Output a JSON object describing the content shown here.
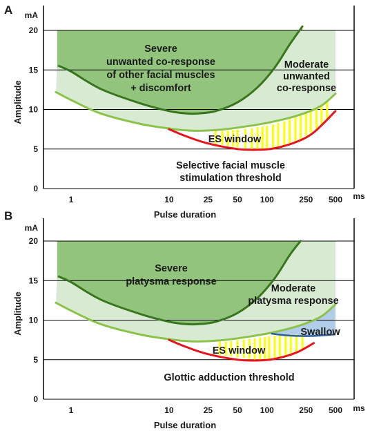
{
  "colors": {
    "severe_fill": "#93c47d",
    "severe_line": "#38761d",
    "moderate_fill": "#d9ead3",
    "moderate_line": "#8bc34a",
    "threshold_line": "#e8141b",
    "es_window_bars": "#ffff00",
    "swallow_fill": "#a9c8e8",
    "swallow_line": "#2e5e96",
    "discomfort_text": "#e8141b",
    "grid": "#000000"
  },
  "chart_data": [
    {
      "panel": "A",
      "type": "area",
      "x_scale": "log",
      "x_unit": "ms",
      "y_unit": "mA",
      "xlabel": "Pulse duration",
      "ylabel": "Amplitude",
      "x_ticks": [
        "1",
        "10",
        "25",
        "50",
        "100",
        "250",
        "500"
      ],
      "y_ticks": [
        "0",
        "5",
        "10",
        "15",
        "20"
      ],
      "ylim": [
        0,
        20
      ],
      "grid": "horizontal",
      "regions": [
        {
          "label_lines": [
            "Severe",
            "unwanted co-response",
            "of other facial muscles"
          ],
          "extra_line": "+ discomfort"
        },
        {
          "label_lines": [
            "Moderate",
            "unwanted",
            "co-response"
          ]
        },
        {
          "label_lines": [
            "ES window"
          ]
        },
        {
          "label_lines": [
            "Selective facial muscle",
            "stimulation threshold"
          ]
        }
      ],
      "series": [
        {
          "x": [
            0.7,
            1,
            2,
            5,
            10,
            15,
            20,
            30,
            50,
            100,
            200,
            350,
            500
          ],
          "y": [
            12.2,
            11.2,
            9.5,
            8.2,
            7.6,
            7.35,
            7.3,
            7.4,
            7.7,
            8.3,
            9.2,
            10.4,
            12.0
          ]
        },
        {
          "x": [
            0.75,
            1,
            2,
            5,
            10,
            15,
            20,
            30,
            50,
            80,
            120,
            170,
            230
          ],
          "y": [
            15.5,
            14.8,
            12.6,
            10.8,
            9.8,
            9.5,
            9.5,
            9.8,
            10.9,
            12.8,
            15.3,
            18.2,
            20.5
          ]
        },
        {
          "x": [
            10,
            15,
            25,
            50,
            80,
            120,
            200,
            300,
            500
          ],
          "y": [
            7.5,
            6.6,
            5.7,
            5.0,
            4.9,
            5.1,
            5.9,
            7.1,
            9.8
          ]
        }
      ],
      "es_window": {
        "x": [
          30,
          35,
          40,
          45,
          50,
          60,
          70,
          80,
          90,
          100,
          115,
          130,
          150,
          170,
          195,
          220,
          250,
          280,
          320,
          360,
          410
        ],
        "y_low": [
          5.6,
          5.5,
          5.4,
          5.3,
          5.2,
          5.1,
          5.0,
          5.0,
          5.0,
          5.0,
          5.1,
          5.2,
          5.4,
          5.7,
          6.0,
          6.3,
          6.7,
          7.1,
          7.6,
          8.1,
          8.7
        ],
        "y_high": [
          7.3,
          7.3,
          7.35,
          7.4,
          7.45,
          7.55,
          7.65,
          7.75,
          7.85,
          7.95,
          8.1,
          8.3,
          8.5,
          8.75,
          9.0,
          9.3,
          9.6,
          9.9,
          10.3,
          10.7,
          11.1
        ]
      }
    },
    {
      "panel": "B",
      "type": "area",
      "x_scale": "log",
      "x_unit": "ms",
      "y_unit": "mA",
      "xlabel": "Pulse duration",
      "ylabel": "Amplitude",
      "x_ticks": [
        "1",
        "10",
        "25",
        "50",
        "100",
        "250",
        "500"
      ],
      "y_ticks": [
        "0",
        "5",
        "10",
        "15",
        "20"
      ],
      "ylim": [
        0,
        20
      ],
      "grid": "horizontal",
      "regions": [
        {
          "label_lines": [
            "Severe",
            "platysma response"
          ]
        },
        {
          "label_lines": [
            "Moderate",
            "platysma response"
          ]
        },
        {
          "label_lines": [
            "Swallow"
          ]
        },
        {
          "label_lines": [
            "ES window"
          ]
        },
        {
          "label_lines": [
            "Glottic adduction threshold"
          ]
        }
      ],
      "series": [
        {
          "x": [
            0.7,
            1,
            2,
            5,
            10,
            15,
            20,
            30,
            50,
            100,
            200,
            350,
            500
          ],
          "y": [
            12.2,
            11.2,
            9.5,
            8.2,
            7.6,
            7.35,
            7.3,
            7.4,
            7.7,
            8.3,
            9.2,
            10.4,
            12.0
          ]
        },
        {
          "x": [
            0.75,
            1,
            2,
            5,
            10,
            15,
            20,
            30,
            50,
            80,
            120,
            170,
            220
          ],
          "y": [
            15.5,
            14.8,
            12.6,
            10.8,
            9.8,
            9.5,
            9.5,
            9.8,
            10.9,
            12.8,
            15.3,
            18.2,
            20.0
          ]
        },
        {
          "x": [
            10,
            15,
            25,
            50,
            80,
            120,
            200,
            300
          ],
          "y": [
            7.5,
            6.6,
            5.7,
            5.0,
            4.9,
            5.1,
            5.9,
            7.1
          ]
        },
        {
          "x": [
            110,
            150,
            200,
            300,
            500
          ],
          "y": [
            8.3,
            8.1,
            8.0,
            8.0,
            8.2
          ]
        }
      ],
      "es_window": {
        "x": [
          33,
          38,
          43,
          50,
          58,
          66,
          75,
          85,
          95,
          105,
          120,
          135,
          155,
          175,
          200,
          230
        ],
        "y_low": [
          5.6,
          5.5,
          5.4,
          5.3,
          5.2,
          5.1,
          5.0,
          5.0,
          5.0,
          5.0,
          5.1,
          5.2,
          5.4,
          5.7,
          6.0,
          6.3
        ],
        "y_high": [
          7.3,
          7.3,
          7.35,
          7.45,
          7.55,
          7.6,
          7.7,
          7.8,
          7.85,
          7.95,
          8.05,
          8.15,
          8.2,
          8.2,
          8.2,
          8.2
        ]
      }
    }
  ]
}
